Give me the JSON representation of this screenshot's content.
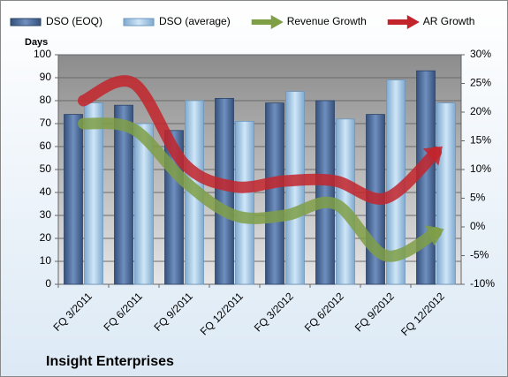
{
  "chart_data": {
    "type": "bar",
    "title": "Insight Enterprises",
    "y_label": "Days",
    "categories": [
      "FQ 3/2011",
      "FQ 6/2011",
      "FQ 9/2011",
      "FQ 12/2011",
      "FQ 3/2012",
      "FQ 6/2012",
      "FQ 9/2012",
      "FQ 12/2012"
    ],
    "series": [
      {
        "name": "DSO (EOQ)",
        "color": "#4f6f9f",
        "type": "bar",
        "values": [
          74,
          78,
          67,
          81,
          79,
          80,
          74,
          93
        ]
      },
      {
        "name": "DSO (average)",
        "color": "#a9cde9",
        "type": "bar",
        "values": [
          79,
          70,
          80,
          71,
          84,
          72,
          89,
          79
        ]
      },
      {
        "name": "Revenue Growth",
        "color": "#7f9f47",
        "type": "line",
        "axis": "y2",
        "values": [
          18,
          17,
          8,
          2,
          2,
          4,
          -5,
          -1
        ]
      },
      {
        "name": "AR Growth",
        "color": "#c3242b",
        "type": "line",
        "axis": "y2",
        "values": [
          22,
          25,
          11,
          7,
          8,
          8,
          5,
          13
        ]
      }
    ],
    "ylim": [
      0,
      100
    ],
    "yticks": [
      0,
      10,
      20,
      30,
      40,
      50,
      60,
      70,
      80,
      90,
      100
    ],
    "y2lim": [
      -10,
      30
    ],
    "y2ticks": [
      {
        "value": -10,
        "label": "-10%"
      },
      {
        "value": -5,
        "label": "-5%"
      },
      {
        "value": 0,
        "label": "0%"
      },
      {
        "value": 5,
        "label": "5%"
      },
      {
        "value": 10,
        "label": "10%"
      },
      {
        "value": 15,
        "label": "15%"
      },
      {
        "value": 20,
        "label": "20%"
      },
      {
        "value": 25,
        "label": "25%"
      },
      {
        "value": 30,
        "label": "30%"
      }
    ],
    "grid": true,
    "legend": "top"
  }
}
